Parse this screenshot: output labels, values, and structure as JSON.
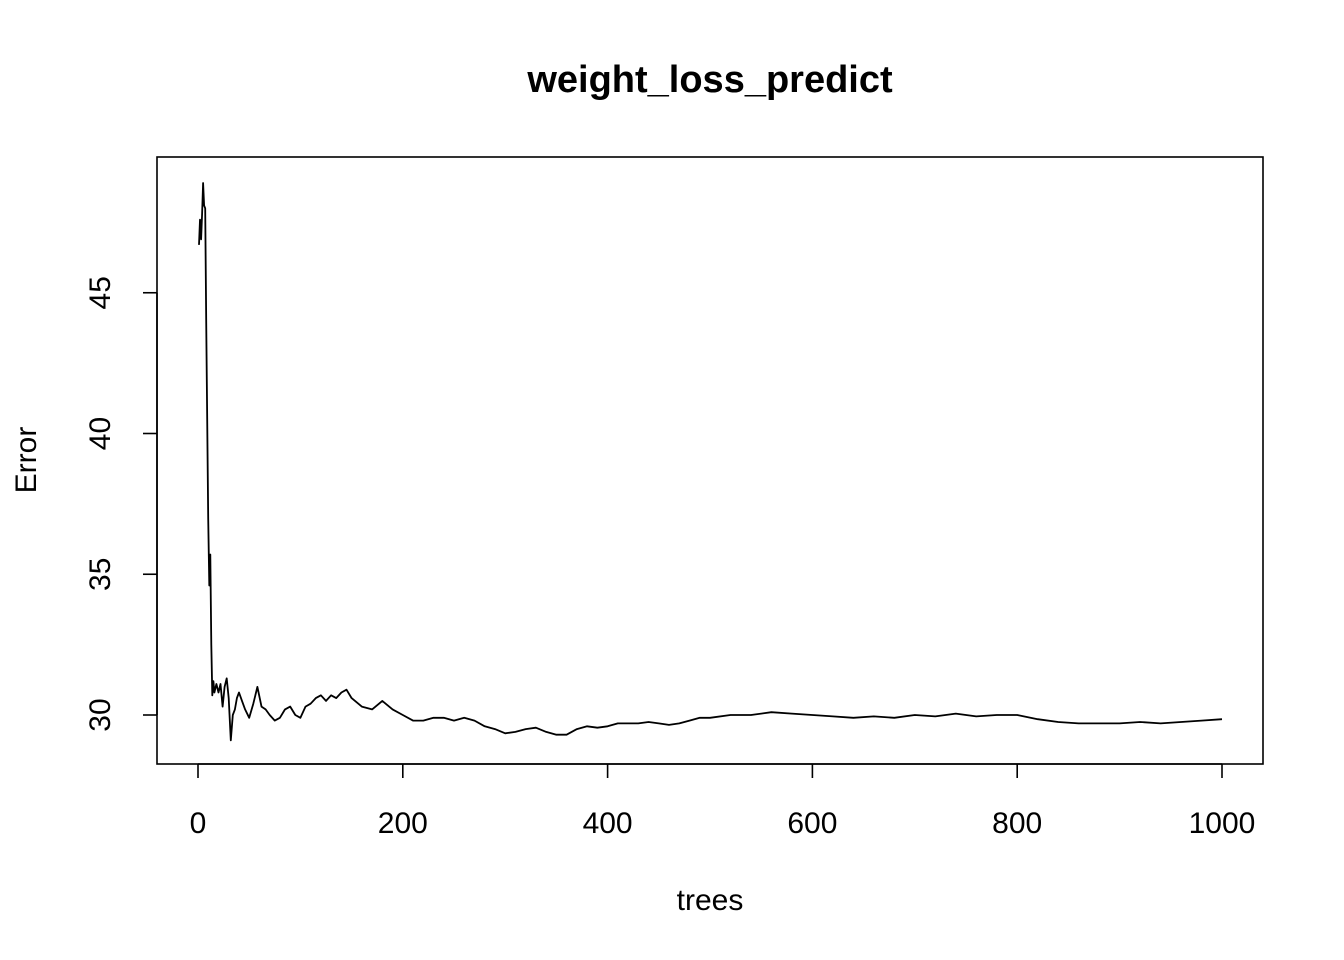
{
  "chart_data": {
    "type": "line",
    "title": "weight_loss_predict",
    "xlabel": "trees",
    "ylabel": "Error",
    "xlim": [
      0,
      1000
    ],
    "ylim": [
      28.3,
      49.7
    ],
    "xticks": [
      0,
      200,
      400,
      600,
      800,
      1000
    ],
    "yticks": [
      30,
      35,
      40,
      45
    ],
    "grid": false,
    "legend": "none",
    "line_color": "#000000",
    "series": [
      {
        "x": [
          1,
          2,
          3,
          4,
          5,
          6,
          7,
          8,
          9,
          10,
          11,
          12,
          13,
          14,
          15,
          16,
          18,
          20,
          22,
          24,
          26,
          28,
          30,
          32,
          34,
          36,
          38,
          40,
          43,
          46,
          50,
          54,
          58,
          62,
          66,
          70,
          75,
          80,
          85,
          90,
          95,
          100,
          105,
          110,
          115,
          120,
          125,
          130,
          135,
          140,
          145,
          150,
          160,
          170,
          180,
          190,
          200,
          210,
          220,
          230,
          240,
          250,
          260,
          270,
          280,
          290,
          300,
          310,
          320,
          330,
          340,
          350,
          360,
          370,
          380,
          390,
          400,
          410,
          420,
          430,
          440,
          450,
          460,
          470,
          480,
          490,
          500,
          520,
          540,
          560,
          580,
          600,
          620,
          640,
          660,
          680,
          700,
          720,
          740,
          760,
          780,
          800,
          820,
          840,
          860,
          880,
          900,
          920,
          940,
          960,
          980,
          1000
        ],
        "y": [
          46.7,
          47.6,
          46.9,
          47.8,
          48.9,
          48.1,
          48.0,
          44.0,
          40.5,
          37.0,
          34.6,
          35.7,
          32.5,
          30.7,
          31.2,
          30.8,
          31.1,
          30.8,
          31.1,
          30.3,
          31.0,
          31.3,
          30.6,
          29.1,
          30.0,
          30.2,
          30.6,
          30.8,
          30.5,
          30.2,
          29.9,
          30.4,
          31.0,
          30.3,
          30.2,
          30.0,
          29.8,
          29.9,
          30.2,
          30.3,
          30.0,
          29.9,
          30.3,
          30.4,
          30.6,
          30.7,
          30.5,
          30.7,
          30.6,
          30.8,
          30.9,
          30.6,
          30.3,
          30.2,
          30.5,
          30.2,
          30.0,
          29.8,
          29.8,
          29.9,
          29.9,
          29.8,
          29.9,
          29.8,
          29.6,
          29.5,
          29.35,
          29.4,
          29.5,
          29.55,
          29.4,
          29.3,
          29.3,
          29.5,
          29.6,
          29.55,
          29.6,
          29.7,
          29.7,
          29.7,
          29.75,
          29.7,
          29.65,
          29.7,
          29.8,
          29.9,
          29.9,
          30.0,
          30.0,
          30.1,
          30.05,
          30.0,
          29.95,
          29.9,
          29.95,
          29.9,
          30.0,
          29.95,
          30.05,
          29.95,
          30.0,
          30.0,
          29.85,
          29.75,
          29.7,
          29.7,
          29.7,
          29.75,
          29.7,
          29.75,
          29.8,
          29.85
        ]
      }
    ]
  }
}
